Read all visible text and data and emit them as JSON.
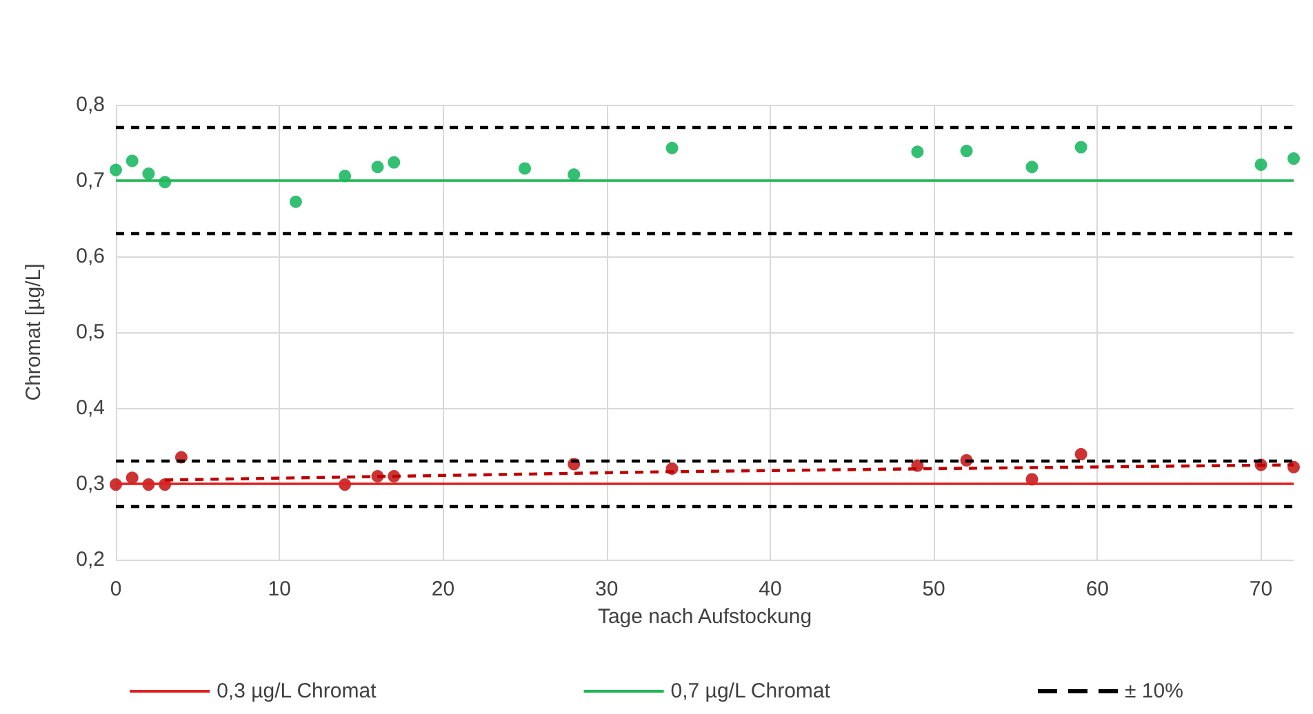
{
  "chart_data": {
    "type": "scatter",
    "xlabel": "Tage nach Aufstockung",
    "ylabel": "Chromat [µg/L]",
    "xlim": [
      0,
      72
    ],
    "xticks": [
      0,
      10,
      20,
      30,
      40,
      50,
      60,
      70
    ],
    "ylim": [
      0.2,
      0.8
    ],
    "yticks": [
      {
        "value": 0.2,
        "label": "0,2"
      },
      {
        "value": 0.3,
        "label": "0,3"
      },
      {
        "value": 0.4,
        "label": "0,4"
      },
      {
        "value": 0.5,
        "label": "0,5"
      },
      {
        "value": 0.6,
        "label": "0,6"
      },
      {
        "value": 0.7,
        "label": "0,7"
      },
      {
        "value": 0.8,
        "label": "0,8"
      }
    ],
    "grid": true,
    "legend": "bottom",
    "series": [
      {
        "name": "0,3 µg/L Chromat",
        "type": "line",
        "marker": "none",
        "line_style": "solid",
        "color": "#e02020",
        "x": [
          0,
          72
        ],
        "values": [
          0.3,
          0.3
        ]
      },
      {
        "name": "0,7 µg/L Chromat",
        "type": "line",
        "marker": "none",
        "line_style": "solid",
        "color": "#1db954",
        "x": [
          0,
          72
        ],
        "values": [
          0.7,
          0.7
        ]
      },
      {
        "name": "± 10%",
        "type": "line",
        "marker": "none",
        "line_style": "dashed",
        "color": "#000000",
        "x": [
          0,
          72
        ],
        "values": [
          0.77,
          0.77
        ]
      },
      {
        "type": "line",
        "marker": "none",
        "line_style": "dashed",
        "color": "#000000",
        "x": [
          0,
          72
        ],
        "values": [
          0.63,
          0.63
        ]
      },
      {
        "type": "line",
        "marker": "none",
        "line_style": "dashed",
        "color": "#000000",
        "x": [
          0,
          72
        ],
        "values": [
          0.33,
          0.33
        ]
      },
      {
        "type": "line",
        "marker": "none",
        "line_style": "dashed",
        "color": "#000000",
        "x": [
          0,
          72
        ],
        "values": [
          0.27,
          0.27
        ]
      },
      {
        "type": "scatter",
        "marker": "circle",
        "color": "#00b050",
        "x": [
          0,
          1,
          2,
          3,
          11,
          14,
          16,
          17,
          25,
          28,
          34,
          49,
          52,
          56,
          59,
          70,
          72
        ],
        "values": [
          0.714,
          0.726,
          0.709,
          0.698,
          0.672,
          0.706,
          0.718,
          0.724,
          0.716,
          0.708,
          0.743,
          0.738,
          0.739,
          0.718,
          0.744,
          0.721,
          0.729
        ]
      },
      {
        "type": "scatter",
        "marker": "circle",
        "color": "#c00000",
        "x": [
          0,
          1,
          2,
          3,
          4,
          14,
          16,
          17,
          28,
          34,
          49,
          52,
          56,
          59,
          70,
          72
        ],
        "values": [
          0.299,
          0.308,
          0.299,
          0.299,
          0.335,
          0.299,
          0.31,
          0.31,
          0.326,
          0.32,
          0.324,
          0.331,
          0.306,
          0.339,
          0.325,
          0.322
        ]
      },
      {
        "type": "line",
        "marker": "none",
        "line_style": "dashed",
        "color": "#c00000",
        "x": [
          3,
          20,
          34,
          50,
          72
        ],
        "values": [
          0.305,
          0.311,
          0.316,
          0.32,
          0.325
        ]
      }
    ]
  }
}
